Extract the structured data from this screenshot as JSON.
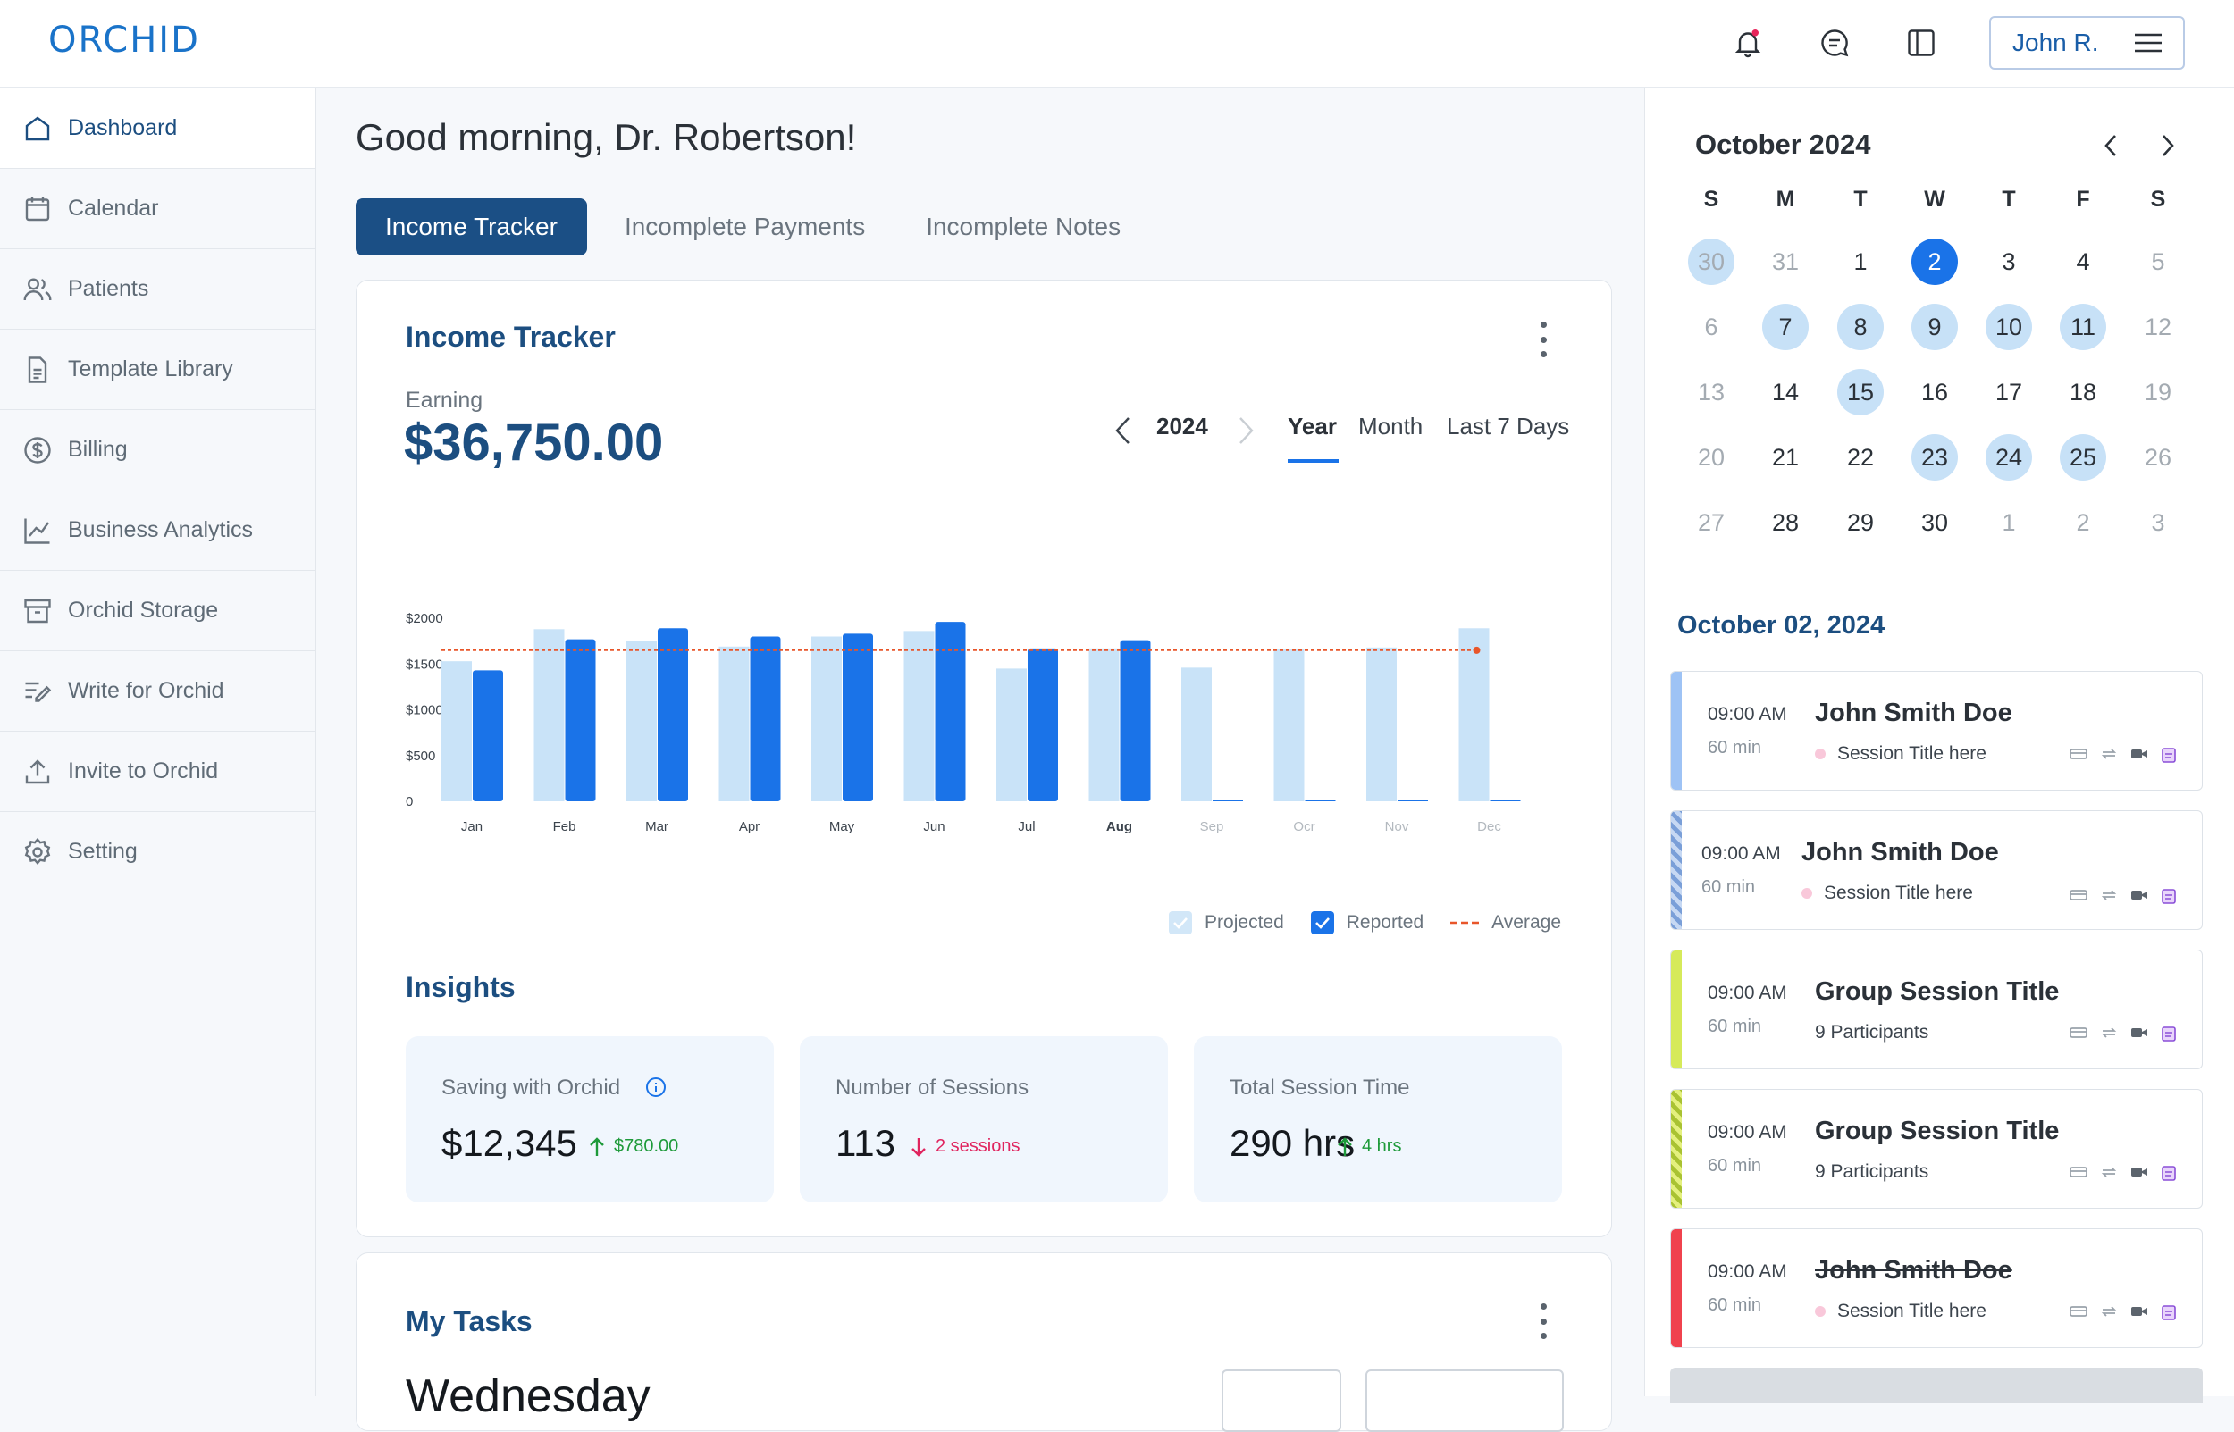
{
  "app": {
    "logo": "ORCHID",
    "user": "John R."
  },
  "sidebar": {
    "items": [
      {
        "label": "Dashboard",
        "icon": "home-icon"
      },
      {
        "label": "Calendar",
        "icon": "calendar-icon"
      },
      {
        "label": "Patients",
        "icon": "users-icon"
      },
      {
        "label": "Template Library",
        "icon": "document-icon"
      },
      {
        "label": "Billing",
        "icon": "dollar-icon"
      },
      {
        "label": "Business Analytics",
        "icon": "analytics-icon"
      },
      {
        "label": "Orchid Storage",
        "icon": "archive-icon"
      },
      {
        "label": "Write for Orchid",
        "icon": "edit-icon"
      },
      {
        "label": "Invite to Orchid",
        "icon": "upload-icon"
      },
      {
        "label": "Setting",
        "icon": "gear-icon"
      }
    ]
  },
  "greeting": "Good morning, Dr. Robertson!",
  "tabs": [
    "Income Tracker",
    "Incomplete Payments",
    "Incomplete Notes"
  ],
  "income": {
    "title": "Income Tracker",
    "earning_label": "Earning",
    "earning_value": "$36,750.00",
    "year": "2024",
    "periods": [
      "Year",
      "Month",
      "Last 7 Days"
    ]
  },
  "chart_data": {
    "type": "bar",
    "categories": [
      "Jan",
      "Feb",
      "Mar",
      "Apr",
      "May",
      "Jun",
      "Jul",
      "Aug",
      "Sep",
      "Ocr",
      "Nov",
      "Dec"
    ],
    "series": [
      {
        "name": "Projected",
        "values": [
          1530,
          1880,
          1750,
          1690,
          1800,
          1860,
          1450,
          1670,
          1460,
          1660,
          1680,
          1890
        ],
        "color": "#c9e3f8"
      },
      {
        "name": "Reported",
        "values": [
          1430,
          1770,
          1890,
          1800,
          1830,
          1960,
          1670,
          1760,
          0,
          0,
          0,
          0
        ],
        "color": "#1a73e8"
      }
    ],
    "average": {
      "name": "Average",
      "value": 1650,
      "color": "#e8562a"
    },
    "y_ticks": [
      "0",
      "$500",
      "$1000",
      "$1500",
      "$2000"
    ],
    "ylim": [
      0,
      2000
    ],
    "legend": [
      "Projected",
      "Reported",
      "Average"
    ]
  },
  "insights": {
    "title": "Insights",
    "cards": [
      {
        "label": "Saving with Orchid",
        "value": "$12,345",
        "change": "$780.00",
        "dir": "up",
        "color": "#1e9a3a"
      },
      {
        "label": "Number of Sessions",
        "value": "113",
        "change": "2 sessions",
        "dir": "down",
        "color": "#e0245e"
      },
      {
        "label": "Total Session Time",
        "value": "290 hrs",
        "change": "4 hrs",
        "dir": "up",
        "color": "#1e9a3a"
      }
    ]
  },
  "tasks": {
    "title": "My Tasks",
    "day": "Wednesday"
  },
  "calendar": {
    "month": "October 2024",
    "weekdays": [
      "S",
      "M",
      "T",
      "W",
      "T",
      "F",
      "S"
    ],
    "weeks": [
      [
        "30",
        "31",
        "1",
        "2",
        "3",
        "4",
        "5"
      ],
      [
        "6",
        "7",
        "8",
        "9",
        "10",
        "11",
        "12"
      ],
      [
        "13",
        "14",
        "15",
        "16",
        "17",
        "18",
        "19"
      ],
      [
        "20",
        "21",
        "22",
        "23",
        "24",
        "25",
        "26"
      ],
      [
        "27",
        "28",
        "29",
        "30",
        "1",
        "2",
        "3"
      ]
    ],
    "selected": "2"
  },
  "schedule": {
    "date": "October 02, 2024",
    "appointments": [
      {
        "time": "09:00 AM",
        "duration": "60 min",
        "name": "John Smith Doe",
        "sub": "Session Title here"
      },
      {
        "time": "09:00 AM",
        "duration": "60 min",
        "name": "John Smith Doe",
        "sub": "Session Title here"
      },
      {
        "time": "09:00 AM",
        "duration": "60 min",
        "name": "Group Session Title",
        "sub": "9 Participants"
      },
      {
        "time": "09:00 AM",
        "duration": "60 min",
        "name": "Group Session Title",
        "sub": "9 Participants"
      },
      {
        "time": "09:00 AM",
        "duration": "60 min",
        "name": "John Smith Doe",
        "sub": "Session Title here"
      }
    ]
  }
}
